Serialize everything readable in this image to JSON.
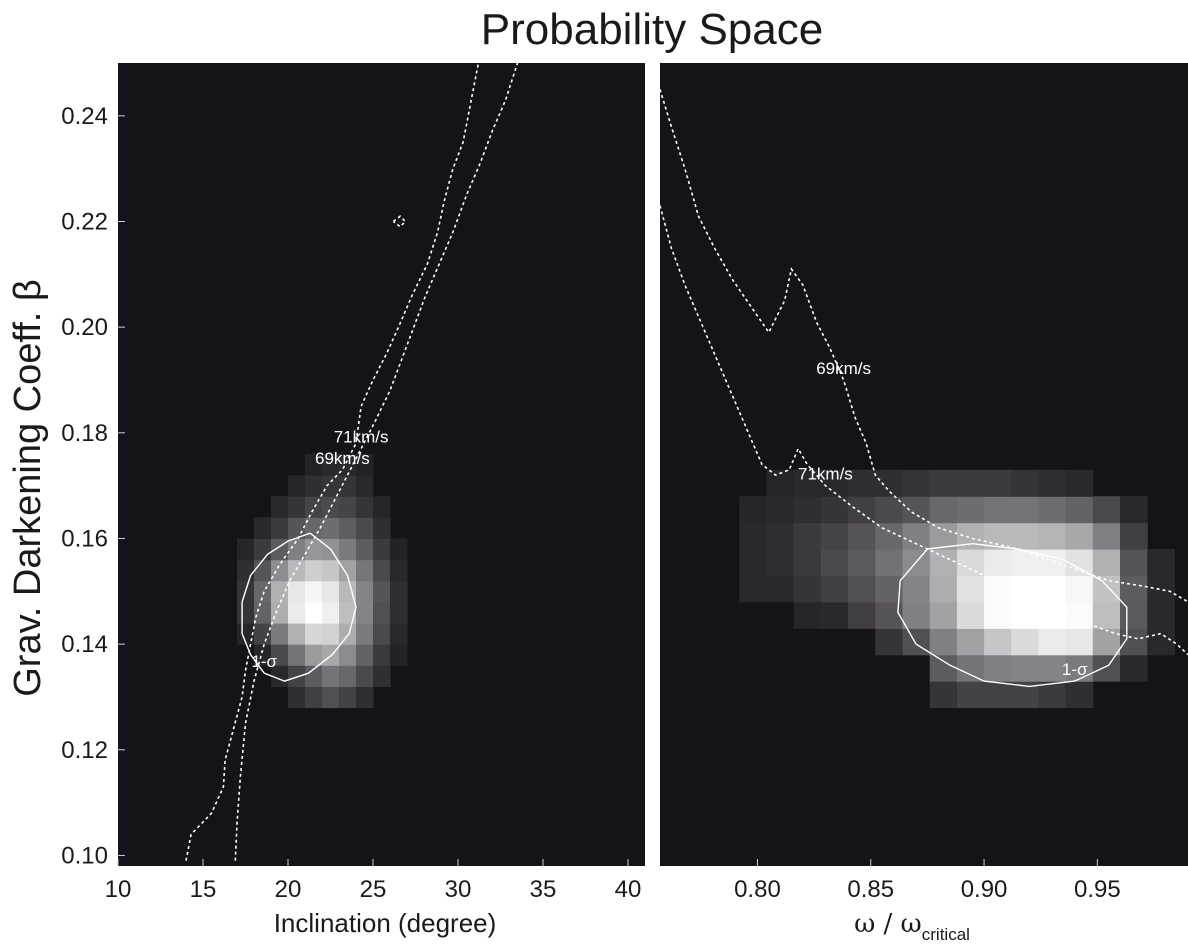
{
  "chart_data": {
    "type": "heatmap",
    "title": "Probability Space",
    "ylabel": "Grav. Darkening Coeff. β",
    "ylim": [
      0.098,
      0.25
    ],
    "yticks": [
      "0.10",
      "0.12",
      "0.14",
      "0.16",
      "0.18",
      "0.20",
      "0.22",
      "0.24"
    ],
    "grid": false,
    "legend": "none",
    "colors": {
      "background": "#15121a",
      "peak": "#ffffff",
      "contour": "#ffffff"
    },
    "panels": [
      {
        "xlabel": "Inclination (degree)",
        "xlim": [
          10,
          41
        ],
        "xticks": [
          "10",
          "15",
          "20",
          "25",
          "30",
          "35",
          "40"
        ],
        "heat": {
          "x0": 17,
          "dx": 1,
          "y0": 0.128,
          "dy": 0.004,
          "z": [
            [
              0.0,
              0.0,
              0.0,
              0.08,
              0.14,
              0.2,
              0.15,
              0.08,
              0.0,
              0.0
            ],
            [
              0.0,
              0.0,
              0.06,
              0.15,
              0.25,
              0.35,
              0.3,
              0.18,
              0.08,
              0.0
            ],
            [
              0.0,
              0.05,
              0.18,
              0.35,
              0.52,
              0.58,
              0.45,
              0.28,
              0.12,
              0.04
            ],
            [
              0.05,
              0.15,
              0.38,
              0.62,
              0.8,
              0.78,
              0.6,
              0.38,
              0.18,
              0.06
            ],
            [
              0.1,
              0.28,
              0.6,
              0.9,
              1.0,
              0.92,
              0.68,
              0.42,
              0.2,
              0.08
            ],
            [
              0.1,
              0.3,
              0.62,
              0.88,
              0.95,
              0.88,
              0.66,
              0.42,
              0.22,
              0.08
            ],
            [
              0.08,
              0.22,
              0.46,
              0.66,
              0.76,
              0.72,
              0.55,
              0.36,
              0.18,
              0.06
            ],
            [
              0.05,
              0.12,
              0.25,
              0.4,
              0.5,
              0.48,
              0.38,
              0.25,
              0.12,
              0.04
            ],
            [
              0.0,
              0.06,
              0.12,
              0.22,
              0.3,
              0.32,
              0.26,
              0.18,
              0.08,
              0.0
            ],
            [
              0.0,
              0.0,
              0.06,
              0.1,
              0.16,
              0.18,
              0.16,
              0.1,
              0.05,
              0.0
            ],
            [
              0.0,
              0.0,
              0.0,
              0.05,
              0.08,
              0.1,
              0.1,
              0.06,
              0.0,
              0.0
            ],
            [
              0.0,
              0.0,
              0.0,
              0.0,
              0.04,
              0.06,
              0.06,
              0.04,
              0.0,
              0.0
            ]
          ]
        },
        "contours": [
          {
            "label": "1-σ",
            "style": "solid",
            "points": [
              [
                21.3,
                0.161
              ],
              [
                22.5,
                0.158
              ],
              [
                23.5,
                0.153
              ],
              [
                24.0,
                0.147
              ],
              [
                23.6,
                0.142
              ],
              [
                22.6,
                0.138
              ],
              [
                21.2,
                0.1345
              ],
              [
                19.8,
                0.133
              ],
              [
                18.6,
                0.1345
              ],
              [
                17.8,
                0.138
              ],
              [
                17.3,
                0.142
              ],
              [
                17.3,
                0.148
              ],
              [
                17.8,
                0.153
              ],
              [
                18.8,
                0.157
              ],
              [
                20.0,
                0.1595
              ],
              [
                21.3,
                0.161
              ]
            ]
          },
          {
            "label": "69km/s",
            "style": "dashed",
            "points": [
              [
                14.0,
                0.099
              ],
              [
                14.3,
                0.104
              ],
              [
                15.5,
                0.108
              ],
              [
                16.2,
                0.113
              ],
              [
                16.3,
                0.118
              ],
              [
                16.8,
                0.124
              ],
              [
                17.3,
                0.13
              ],
              [
                17.5,
                0.135
              ],
              [
                17.8,
                0.14
              ],
              [
                18.1,
                0.145
              ],
              [
                18.6,
                0.15
              ],
              [
                19.5,
                0.155
              ],
              [
                20.6,
                0.16
              ],
              [
                21.4,
                0.165
              ],
              [
                22.3,
                0.17
              ],
              [
                23.2,
                0.173
              ],
              [
                24.0,
                0.178
              ],
              [
                24.3,
                0.185
              ],
              [
                25.0,
                0.19
              ],
              [
                25.8,
                0.195
              ],
              [
                26.5,
                0.2
              ],
              [
                27.3,
                0.206
              ],
              [
                28.2,
                0.212
              ],
              [
                28.8,
                0.218
              ],
              [
                29.2,
                0.224
              ],
              [
                29.7,
                0.23
              ],
              [
                30.3,
                0.235
              ],
              [
                30.6,
                0.24
              ],
              [
                30.9,
                0.245
              ],
              [
                31.2,
                0.25
              ]
            ]
          },
          {
            "label": "71km/s",
            "style": "dashed",
            "points": [
              [
                16.9,
                0.099
              ],
              [
                17.0,
                0.106
              ],
              [
                17.2,
                0.115
              ],
              [
                17.5,
                0.125
              ],
              [
                18.0,
                0.133
              ],
              [
                18.6,
                0.14
              ],
              [
                19.3,
                0.146
              ],
              [
                20.1,
                0.152
              ],
              [
                21.0,
                0.157
              ],
              [
                21.9,
                0.162
              ],
              [
                22.7,
                0.167
              ],
              [
                23.5,
                0.172
              ],
              [
                24.3,
                0.177
              ],
              [
                25.1,
                0.182
              ],
              [
                26.0,
                0.188
              ],
              [
                26.7,
                0.194
              ],
              [
                27.4,
                0.2
              ],
              [
                28.1,
                0.206
              ],
              [
                28.9,
                0.212
              ],
              [
                29.7,
                0.218
              ],
              [
                30.5,
                0.225
              ],
              [
                31.3,
                0.231
              ],
              [
                32.0,
                0.237
              ],
              [
                32.8,
                0.243
              ],
              [
                33.5,
                0.25
              ]
            ]
          },
          {
            "label": "",
            "style": "dashed",
            "points": [
              [
                26.2,
                0.22
              ],
              [
                26.6,
                0.221
              ],
              [
                26.9,
                0.22
              ],
              [
                26.6,
                0.219
              ],
              [
                26.2,
                0.22
              ]
            ]
          }
        ]
      },
      {
        "xlabel": "ω / ω",
        "xlabel_sub": "critical",
        "xlim": [
          0.757,
          0.99
        ],
        "xticks": [
          "0.80",
          "0.85",
          "0.90",
          "0.95"
        ],
        "heat": {
          "x0": 0.78,
          "dx": 0.012,
          "y0": 0.128,
          "dy": 0.005,
          "z": [
            [
              0.0,
              0.0,
              0.0,
              0.0,
              0.0,
              0.0,
              0.0,
              0.0,
              0.1,
              0.15,
              0.15,
              0.15,
              0.12,
              0.08,
              0.0,
              0.0,
              0.0
            ],
            [
              0.0,
              0.0,
              0.0,
              0.0,
              0.0,
              0.0,
              0.0,
              0.0,
              0.25,
              0.35,
              0.4,
              0.42,
              0.42,
              0.38,
              0.2,
              0.06,
              0.0
            ],
            [
              0.0,
              0.0,
              0.0,
              0.0,
              0.0,
              0.0,
              0.1,
              0.2,
              0.4,
              0.55,
              0.72,
              0.82,
              0.9,
              0.88,
              0.55,
              0.2,
              0.06
            ],
            [
              0.0,
              0.0,
              0.0,
              0.05,
              0.06,
              0.14,
              0.22,
              0.4,
              0.55,
              0.82,
              0.98,
              1.0,
              1.0,
              0.98,
              0.68,
              0.24,
              0.06
            ],
            [
              0.0,
              0.06,
              0.06,
              0.1,
              0.14,
              0.2,
              0.28,
              0.42,
              0.6,
              0.86,
              0.98,
              1.0,
              1.0,
              0.96,
              0.7,
              0.25,
              0.06
            ],
            [
              0.0,
              0.06,
              0.08,
              0.12,
              0.18,
              0.24,
              0.34,
              0.45,
              0.62,
              0.82,
              0.9,
              0.92,
              0.92,
              0.86,
              0.62,
              0.22,
              0.06
            ],
            [
              0.0,
              0.06,
              0.08,
              0.12,
              0.16,
              0.22,
              0.3,
              0.4,
              0.52,
              0.62,
              0.66,
              0.66,
              0.64,
              0.58,
              0.4,
              0.14,
              0.0
            ],
            [
              0.0,
              0.05,
              0.06,
              0.08,
              0.1,
              0.14,
              0.18,
              0.22,
              0.3,
              0.32,
              0.35,
              0.35,
              0.32,
              0.28,
              0.18,
              0.06,
              0.0
            ],
            [
              0.0,
              0.0,
              0.05,
              0.06,
              0.06,
              0.08,
              0.08,
              0.1,
              0.12,
              0.12,
              0.12,
              0.1,
              0.08,
              0.06,
              0.0,
              0.0,
              0.0
            ]
          ]
        },
        "contours": [
          {
            "label": "1-σ",
            "style": "solid",
            "points": [
              [
                0.875,
                0.158
              ],
              [
                0.895,
                0.159
              ],
              [
                0.915,
                0.158
              ],
              [
                0.935,
                0.156
              ],
              [
                0.952,
                0.152
              ],
              [
                0.963,
                0.147
              ],
              [
                0.963,
                0.141
              ],
              [
                0.955,
                0.136
              ],
              [
                0.94,
                0.133
              ],
              [
                0.92,
                0.132
              ],
              [
                0.9,
                0.133
              ],
              [
                0.885,
                0.136
              ],
              [
                0.87,
                0.14
              ],
              [
                0.862,
                0.146
              ],
              [
                0.863,
                0.152
              ],
              [
                0.875,
                0.158
              ]
            ]
          },
          {
            "label": "69km/s",
            "style": "dashed",
            "points": [
              [
                0.757,
                0.245
              ],
              [
                0.762,
                0.238
              ],
              [
                0.768,
                0.23
              ],
              [
                0.774,
                0.221
              ],
              [
                0.781,
                0.215
              ],
              [
                0.789,
                0.209
              ],
              [
                0.797,
                0.204
              ],
              [
                0.805,
                0.199
              ],
              [
                0.812,
                0.205
              ],
              [
                0.815,
                0.211
              ],
              [
                0.82,
                0.208
              ],
              [
                0.826,
                0.201
              ],
              [
                0.832,
                0.196
              ],
              [
                0.838,
                0.19
              ],
              [
                0.843,
                0.183
              ],
              [
                0.848,
                0.178
              ],
              [
                0.852,
                0.172
              ],
              [
                0.858,
                0.169
              ],
              [
                0.868,
                0.165
              ],
              [
                0.88,
                0.162
              ],
              [
                0.895,
                0.16
              ],
              [
                0.915,
                0.158
              ],
              [
                0.935,
                0.155
              ],
              [
                0.955,
                0.152
              ],
              [
                0.97,
                0.151
              ],
              [
                0.982,
                0.15
              ],
              [
                0.99,
                0.148
              ]
            ]
          },
          {
            "label": "71km/s",
            "style": "dashed",
            "points": [
              [
                0.757,
                0.223
              ],
              [
                0.762,
                0.215
              ],
              [
                0.768,
                0.208
              ],
              [
                0.774,
                0.202
              ],
              [
                0.78,
                0.196
              ],
              [
                0.786,
                0.19
              ],
              [
                0.792,
                0.184
              ],
              [
                0.797,
                0.179
              ],
              [
                0.802,
                0.174
              ],
              [
                0.808,
                0.172
              ],
              [
                0.814,
                0.173
              ],
              [
                0.818,
                0.177
              ],
              [
                0.822,
                0.174
              ],
              [
                0.83,
                0.17
              ],
              [
                0.842,
                0.166
              ],
              [
                0.855,
                0.162
              ],
              [
                0.87,
                0.159
              ],
              [
                0.885,
                0.156
              ],
              [
                0.9,
                0.153
              ],
              [
                0.915,
                0.15
              ],
              [
                0.93,
                0.147
              ],
              [
                0.945,
                0.144
              ],
              [
                0.958,
                0.142
              ],
              [
                0.968,
                0.141
              ],
              [
                0.978,
                0.142
              ],
              [
                0.985,
                0.14
              ],
              [
                0.99,
                0.138
              ]
            ]
          }
        ]
      }
    ]
  }
}
